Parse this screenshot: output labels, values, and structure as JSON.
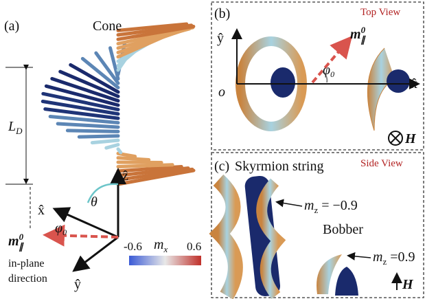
{
  "panel_a": {
    "label": "(a)",
    "title": "Cone",
    "period": {
      "symbol": "L",
      "subscript": "D"
    },
    "theta": "θ",
    "z_axis": "ẑ",
    "x_axis": "x̂",
    "y_axis": "ŷ",
    "m_label": {
      "symbol": "m",
      "superscript": "0",
      "subscript": "∥"
    },
    "phi": {
      "symbol": "φ",
      "subscript": "0"
    },
    "in_plane": [
      "in-plane",
      "direction"
    ],
    "colorbar": {
      "min": "-0.6",
      "max": "0.6",
      "symbol": "m",
      "subscript": "x"
    }
  },
  "panel_b": {
    "label": "(b)",
    "view": "Top View",
    "y_axis": "ŷ",
    "x_axis": "x̂",
    "origin": "o",
    "m_label": {
      "symbol": "m",
      "superscript": "0",
      "subscript": "∥"
    },
    "phi": {
      "symbol": "φ",
      "subscript": "0"
    },
    "field": "H"
  },
  "panel_c": {
    "label": "(c)",
    "title": "Skyrmion string",
    "view": "Side View",
    "string_label": {
      "symbol": "m",
      "subscript": "z",
      "text": " = −0.9"
    },
    "bobber": "Bobber",
    "bobber_label": {
      "symbol": "m",
      "subscript": "z",
      "text": " =0.9"
    },
    "field": "H"
  }
}
